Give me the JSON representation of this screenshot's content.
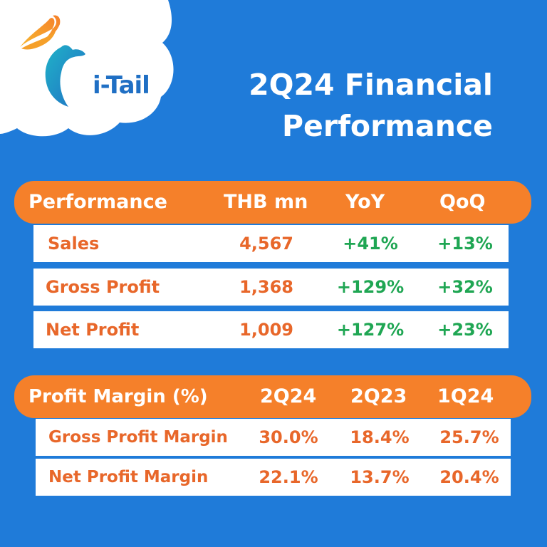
{
  "brand": {
    "logo_text": "i-Tail",
    "colors": {
      "background": "#1f7bd9",
      "accent": "#f5802a",
      "positive": "#1fa653",
      "label": "#e8672a"
    }
  },
  "title": {
    "line1": "2Q24 Financial",
    "line2": "Performance"
  },
  "performance": {
    "headers": [
      "Performance",
      "THB mn",
      "YoY",
      "QoQ"
    ],
    "rows": [
      {
        "label": "Sales",
        "value": "4,567",
        "yoy": "+41%",
        "qoq": "+13%"
      },
      {
        "label": "Gross Profit",
        "value": "1,368",
        "yoy": "+129%",
        "qoq": "+32%"
      },
      {
        "label": "Net Profit",
        "value": "1,009",
        "yoy": "+127%",
        "qoq": "+23%"
      }
    ]
  },
  "margin": {
    "headers": [
      "Profit Margin (%)",
      "2Q24",
      "2Q23",
      "1Q24"
    ],
    "rows": [
      {
        "label": "Gross Profit Margin",
        "c1": "30.0%",
        "c2": "18.4%",
        "c3": "25.7%"
      },
      {
        "label": "Net Profit Margin",
        "c1": "22.1%",
        "c2": "13.7%",
        "c3": "20.4%"
      }
    ]
  }
}
